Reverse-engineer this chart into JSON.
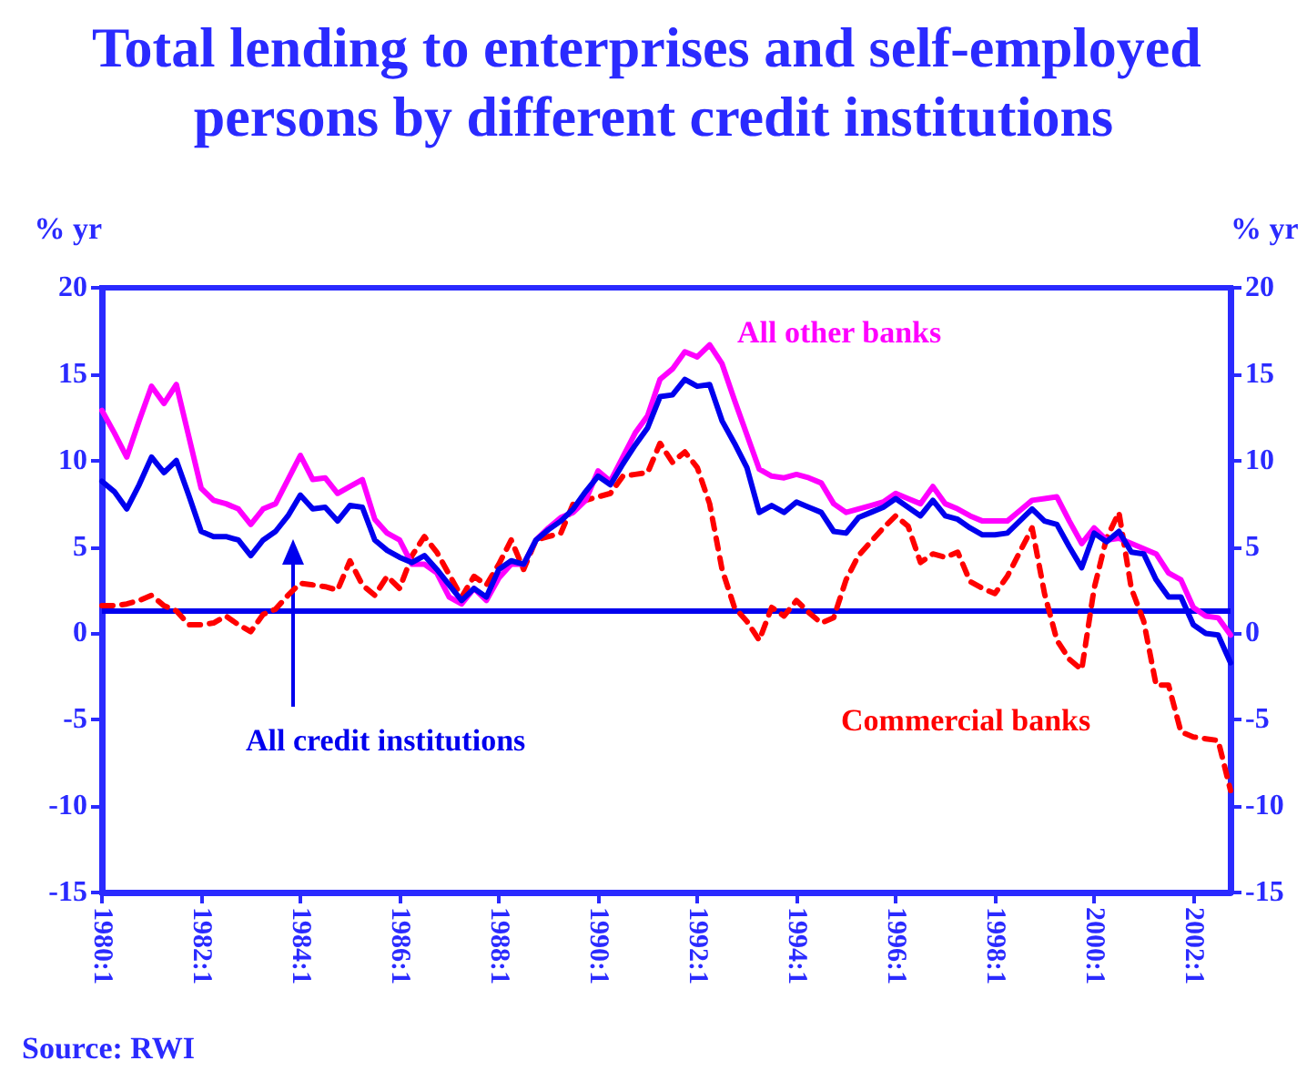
{
  "chart_data": {
    "type": "line",
    "title": "Total lending to enterprises and self-employed persons by different credit institutions",
    "ylabel": "% yr",
    "y2label": "% yr",
    "categories": [
      "1980:1",
      null,
      null,
      null,
      null,
      null,
      null,
      null,
      "1982:1",
      null,
      null,
      null,
      null,
      null,
      null,
      null,
      "1984:1",
      null,
      null,
      null,
      null,
      null,
      null,
      null,
      "1986:1",
      null,
      null,
      null,
      null,
      null,
      null,
      null,
      "1988:1",
      null,
      null,
      null,
      null,
      null,
      null,
      null,
      "1990:1",
      null,
      null,
      null,
      null,
      null,
      null,
      null,
      "1992:1",
      null,
      null,
      null,
      null,
      null,
      null,
      null,
      "1994:1",
      null,
      null,
      null,
      null,
      null,
      null,
      null,
      "1996:1",
      null,
      null,
      null,
      null,
      null,
      null,
      null,
      "1998:1",
      null,
      null,
      null,
      null,
      null,
      null,
      null,
      "2000:1",
      null,
      null,
      null,
      null,
      null,
      null,
      null,
      "2002:1",
      null,
      null,
      null
    ],
    "ylim": [
      -15,
      20
    ],
    "yticks": [
      -15,
      -10,
      -5,
      0,
      5,
      10,
      15,
      20
    ],
    "y2lim": [
      -15,
      20
    ],
    "y2ticks": [
      -15,
      -10,
      -5,
      0,
      5,
      10,
      15,
      20
    ],
    "marker": "none",
    "annotations": [
      "Source: RWI"
    ],
    "ref_lines": [
      {
        "axis": "y",
        "value": 1.3,
        "color": "#0000ee"
      }
    ],
    "series": [
      {
        "name": "All credit institutions",
        "color": "#0000ee",
        "line_style": "solid",
        "values": [
          8.8,
          8.2,
          7.2,
          8.6,
          10.2,
          9.3,
          10.0,
          8.0,
          5.9,
          5.6,
          5.6,
          5.4,
          4.5,
          5.4,
          5.9,
          6.8,
          8.0,
          7.2,
          7.3,
          6.5,
          7.4,
          7.3,
          5.4,
          4.8,
          4.4,
          4.1,
          4.5,
          3.7,
          2.8,
          1.9,
          2.6,
          2.1,
          3.7,
          4.2,
          4.0,
          5.4,
          6.0,
          6.5,
          7.2,
          8.2,
          9.1,
          8.6,
          9.8,
          10.9,
          11.9,
          13.7,
          13.8,
          14.7,
          14.3,
          14.4,
          12.3,
          11.0,
          9.6,
          7.0,
          7.4,
          7.0,
          7.6,
          7.3,
          7.0,
          5.9,
          5.8,
          6.7,
          7.0,
          7.3,
          7.8,
          7.3,
          6.8,
          7.7,
          6.8,
          6.6,
          6.1,
          5.7,
          5.7,
          5.8,
          6.5,
          7.2,
          6.5,
          6.3,
          5.0,
          3.8,
          5.8,
          5.3,
          5.9,
          4.7,
          4.6,
          3.1,
          2.1,
          2.1,
          0.5,
          0.0,
          -0.1,
          -1.7
        ]
      },
      {
        "name": "All other banks",
        "color": "#ff00ff",
        "line_style": "solid",
        "values": [
          12.9,
          11.6,
          10.2,
          12.3,
          14.3,
          13.3,
          14.4,
          11.4,
          8.4,
          7.7,
          7.5,
          7.2,
          6.3,
          7.2,
          7.5,
          8.9,
          10.3,
          8.9,
          9.0,
          8.1,
          8.5,
          8.9,
          6.6,
          5.8,
          5.4,
          4.0,
          4.0,
          3.5,
          2.1,
          1.7,
          2.6,
          1.9,
          3.2,
          4.0,
          4.0,
          5.4,
          6.1,
          6.7,
          7.0,
          7.7,
          9.4,
          8.8,
          10.2,
          11.6,
          12.6,
          14.7,
          15.3,
          16.3,
          16.0,
          16.7,
          15.6,
          13.5,
          11.5,
          9.5,
          9.1,
          9.0,
          9.2,
          9.0,
          8.7,
          7.5,
          7.0,
          7.2,
          7.4,
          7.6,
          8.1,
          7.8,
          7.5,
          8.5,
          7.5,
          7.2,
          6.8,
          6.5,
          6.5,
          6.5,
          7.1,
          7.7,
          7.8,
          7.9,
          6.5,
          5.2,
          6.1,
          5.4,
          5.5,
          5.2,
          4.9,
          4.6,
          3.5,
          3.1,
          1.5,
          1.0,
          0.9,
          -0.1
        ]
      },
      {
        "name": "Commercial banks",
        "color": "#ff0000",
        "line_style": "dashed",
        "values": [
          1.6,
          1.6,
          1.7,
          1.9,
          2.2,
          1.6,
          1.3,
          0.5,
          0.5,
          0.6,
          1.0,
          0.5,
          0.1,
          1.1,
          1.4,
          2.2,
          2.9,
          2.8,
          2.7,
          2.5,
          4.2,
          2.8,
          2.2,
          3.3,
          2.6,
          4.5,
          5.6,
          4.7,
          3.4,
          2.1,
          3.3,
          2.8,
          4.0,
          5.4,
          3.7,
          5.4,
          5.6,
          5.8,
          7.5,
          7.7,
          7.9,
          8.1,
          9.1,
          9.2,
          9.3,
          11.0,
          9.9,
          10.5,
          9.6,
          7.5,
          3.7,
          1.5,
          0.7,
          -0.4,
          1.5,
          1.0,
          1.9,
          1.2,
          0.6,
          0.9,
          3.1,
          4.5,
          5.3,
          6.1,
          6.8,
          6.2,
          4.1,
          4.6,
          4.4,
          4.7,
          3.0,
          2.6,
          2.3,
          3.3,
          4.7,
          6.1,
          2.3,
          -0.4,
          -1.5,
          -2.1,
          2.6,
          5.5,
          7.0,
          2.6,
          0.7,
          -3.0,
          -3.0,
          -5.7,
          -6.0,
          -6.1,
          -6.2,
          -9.1
        ]
      }
    ]
  }
}
